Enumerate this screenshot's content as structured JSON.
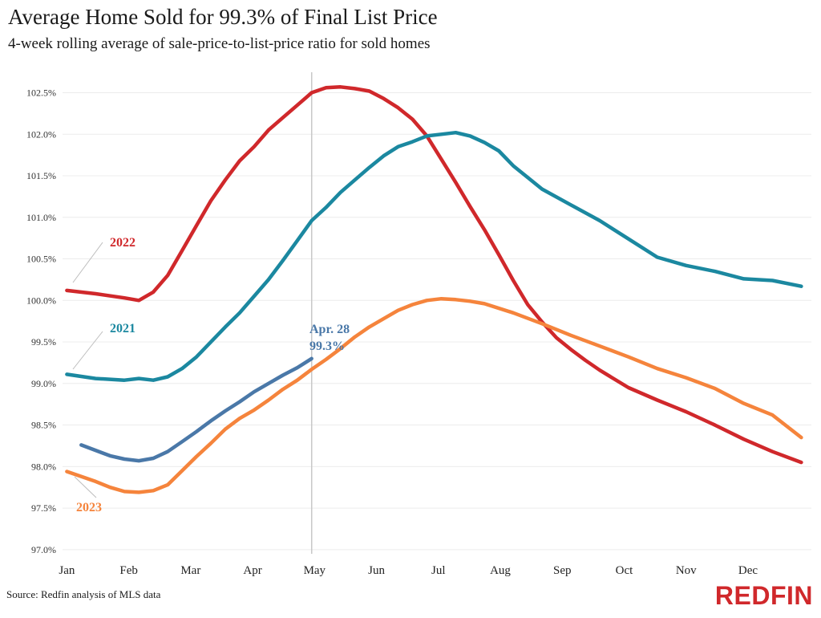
{
  "header": {
    "title": "Average Home Sold for 99.3% of Final List Price",
    "subtitle": "4-week rolling average of sale-price-to-list-price ratio for sold homes"
  },
  "footer": {
    "source": "Source: Redfin analysis of MLS data",
    "logo_text": "REDFIN"
  },
  "colors": {
    "2022": "#d0282b",
    "2021": "#1b88a0",
    "2023_ytd": "#4a78a8",
    "2023": "#f5843c",
    "grid": "#ececec",
    "axis_text": "#333333",
    "marker_line": "#c8c8c8"
  },
  "chart_data": {
    "type": "line",
    "title": "Average Home Sold for 99.3% of Final List Price",
    "subtitle": "4-week rolling average of sale-price-to-list-price ratio for sold homes",
    "x_unit": "week of year",
    "categories": [
      "Jan",
      "Feb",
      "Mar",
      "Apr",
      "May",
      "Jun",
      "Jul",
      "Aug",
      "Sep",
      "Oct",
      "Nov",
      "Dec"
    ],
    "xlim": [
      1,
      52
    ],
    "ylim": [
      97.0,
      102.5
    ],
    "yticks": [
      97.0,
      97.5,
      98.0,
      98.5,
      99.0,
      99.5,
      100.0,
      100.5,
      101.0,
      101.5,
      102.0,
      102.5
    ],
    "ytick_labels": [
      "97.0%",
      "97.5%",
      "98.0%",
      "98.5%",
      "99.0%",
      "99.5%",
      "100.0%",
      "100.5%",
      "101.0%",
      "101.5%",
      "102.0%",
      "102.5%"
    ],
    "grid": true,
    "vertical_marker_week": 18,
    "series": [
      {
        "name": "2022",
        "color_key": "2022",
        "x": [
          1,
          3,
          5,
          6,
          7,
          8,
          9,
          10,
          11,
          12,
          13,
          14,
          15,
          16,
          17,
          18,
          19,
          20,
          21,
          22,
          23,
          24,
          25,
          26,
          27,
          28,
          29,
          30,
          31,
          32,
          33,
          34,
          35,
          36,
          37,
          38,
          40,
          42,
          44,
          46,
          48,
          50,
          52
        ],
        "y": [
          100.12,
          100.08,
          100.03,
          100.0,
          100.1,
          100.3,
          100.6,
          100.9,
          101.2,
          101.45,
          101.68,
          101.85,
          102.05,
          102.2,
          102.35,
          102.5,
          102.56,
          102.57,
          102.55,
          102.52,
          102.43,
          102.32,
          102.18,
          101.98,
          101.7,
          101.42,
          101.13,
          100.85,
          100.55,
          100.24,
          99.95,
          99.74,
          99.55,
          99.41,
          99.28,
          99.16,
          98.95,
          98.8,
          98.66,
          98.5,
          98.33,
          98.18,
          98.05
        ]
      },
      {
        "name": "2021",
        "color_key": "2021",
        "x": [
          1,
          3,
          5,
          6,
          7,
          8,
          9,
          10,
          11,
          12,
          13,
          14,
          15,
          16,
          17,
          18,
          19,
          20,
          21,
          22,
          23,
          24,
          25,
          26,
          27,
          28,
          29,
          30,
          31,
          32,
          33,
          34,
          36,
          38,
          40,
          42,
          44,
          46,
          48,
          50,
          52
        ],
        "y": [
          99.11,
          99.06,
          99.04,
          99.06,
          99.04,
          99.08,
          99.18,
          99.32,
          99.5,
          99.68,
          99.85,
          100.05,
          100.25,
          100.48,
          100.72,
          100.96,
          101.12,
          101.3,
          101.45,
          101.6,
          101.74,
          101.85,
          101.91,
          101.98,
          102.0,
          102.02,
          101.98,
          101.9,
          101.8,
          101.62,
          101.48,
          101.34,
          101.15,
          100.96,
          100.74,
          100.52,
          100.42,
          100.35,
          100.26,
          100.24,
          100.17
        ]
      },
      {
        "name": "2023 YTD",
        "color_key": "2023_ytd",
        "x": [
          2,
          4,
          5,
          6,
          7,
          8,
          9,
          10,
          11,
          12,
          13,
          14,
          15,
          16,
          17,
          18
        ],
        "y": [
          98.26,
          98.13,
          98.09,
          98.07,
          98.1,
          98.18,
          98.3,
          98.42,
          98.55,
          98.67,
          98.78,
          98.9,
          99.0,
          99.1,
          99.19,
          99.3
        ]
      },
      {
        "name": "2023",
        "color_key": "2023",
        "x": [
          1,
          3,
          4,
          5,
          6,
          7,
          8,
          9,
          10,
          11,
          12,
          13,
          14,
          15,
          16,
          17,
          18,
          19,
          20,
          21,
          22,
          23,
          24,
          25,
          26,
          27,
          28,
          29,
          30,
          32,
          34,
          36,
          38,
          40,
          42,
          44,
          46,
          48,
          50,
          52
        ],
        "y": [
          97.94,
          97.82,
          97.75,
          97.7,
          97.69,
          97.71,
          97.78,
          97.95,
          98.12,
          98.28,
          98.45,
          98.58,
          98.68,
          98.8,
          98.93,
          99.04,
          99.17,
          99.29,
          99.42,
          99.56,
          99.68,
          99.78,
          99.88,
          99.95,
          100.0,
          100.02,
          100.01,
          99.99,
          99.96,
          99.85,
          99.72,
          99.58,
          99.45,
          99.32,
          99.18,
          99.07,
          98.94,
          98.76,
          98.62,
          98.35
        ]
      }
    ],
    "annotations": {
      "label_2022": "2022",
      "label_2021": "2021",
      "label_2023": "2023",
      "callout_date": "Apr. 28",
      "callout_value": "99.3%"
    }
  }
}
